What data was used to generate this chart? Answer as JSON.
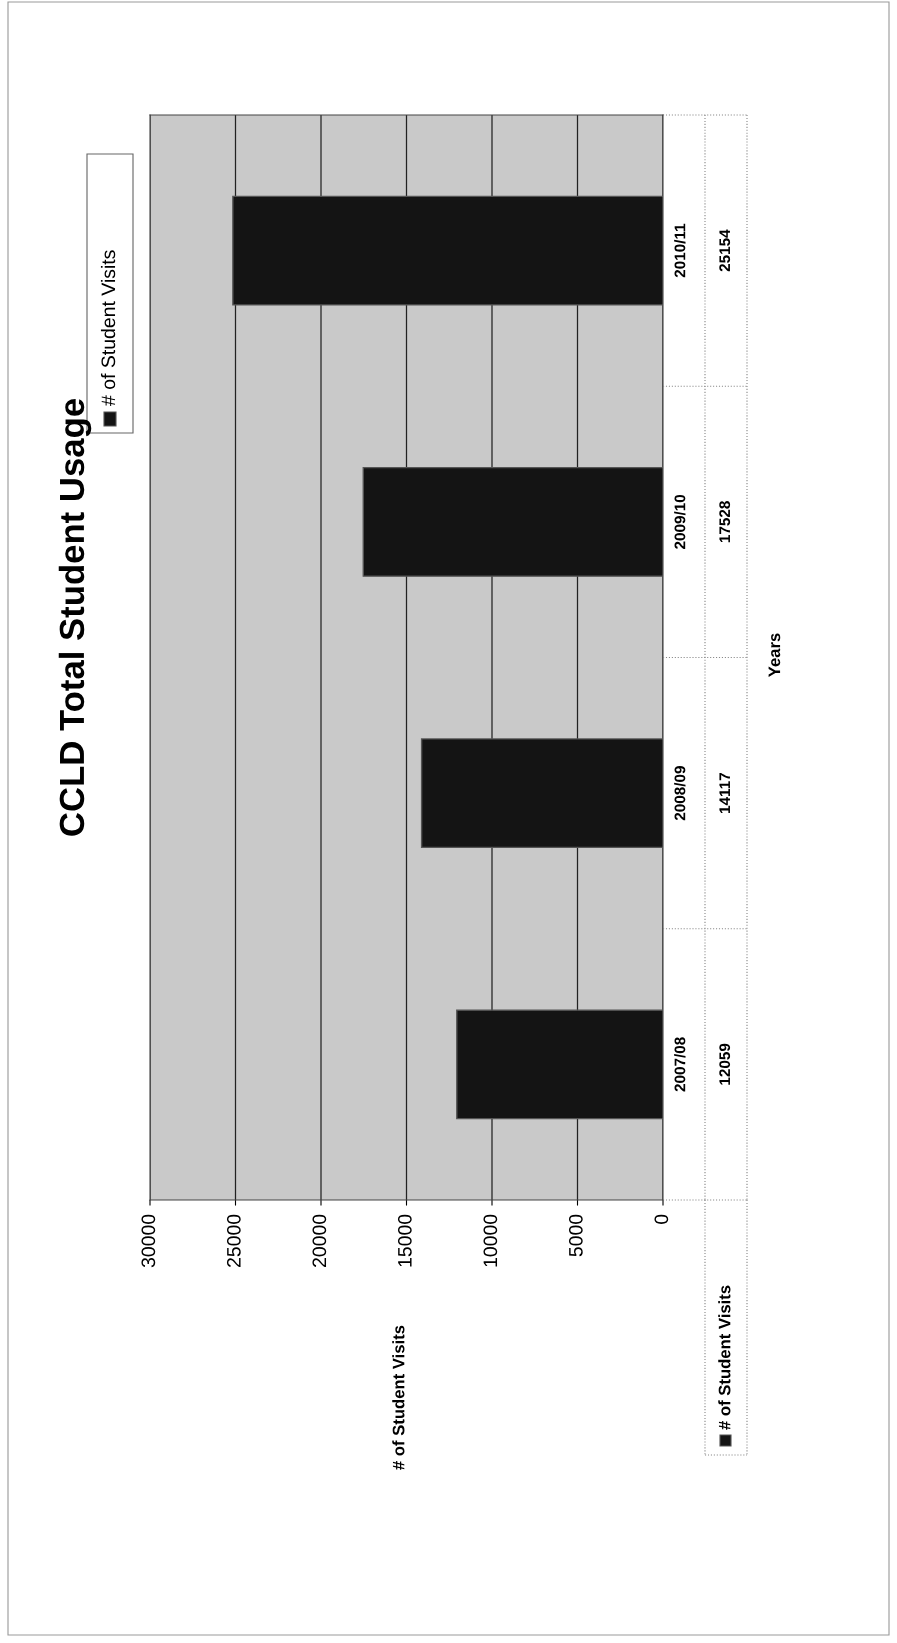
{
  "chart_data": {
    "type": "bar",
    "title": "CCLD Total Student Usage",
    "orientation": "horizontal",
    "categories": [
      "2010/11",
      "2009/10",
      "2008/09",
      "2007/08"
    ],
    "series": [
      {
        "name": "# of Student Visits",
        "color": "#141414",
        "values": [
          25154,
          17528,
          14117,
          12059
        ]
      }
    ],
    "annotations": [
      "# of Student Visits"
    ],
    "ylabel": "Years",
    "xlim": [
      30000,
      0
    ],
    "xticks": [
      0,
      5000,
      10000,
      15000,
      20000,
      25000,
      30000
    ],
    "grid": "x",
    "legend": "top left",
    "data_labels": true
  }
}
